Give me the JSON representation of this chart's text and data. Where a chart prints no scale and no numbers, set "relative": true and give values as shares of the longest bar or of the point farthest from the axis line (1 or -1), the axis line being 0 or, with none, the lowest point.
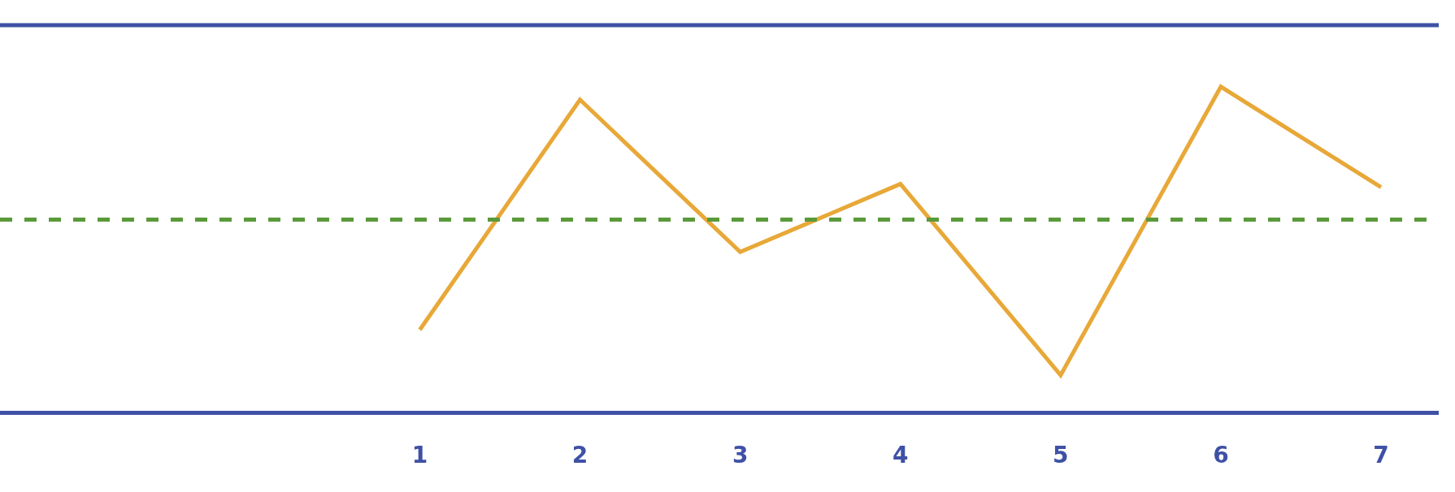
{
  "chart_data": {
    "type": "line",
    "relative": true,
    "categories": [
      "1",
      "2",
      "3",
      "4",
      "5",
      "6",
      "7"
    ],
    "series": [
      {
        "color": "#e8a838",
        "values": [
          0.25,
          0.96,
          0.49,
          0.7,
          0.11,
          1,
          0.69
        ]
      }
    ],
    "ref_lines": [
      {
        "axis": "y",
        "value": 1.19,
        "color": "#3f51a5",
        "line_style": "solid"
      },
      {
        "axis": "y",
        "value": 0.59,
        "color": "#5a9a3a",
        "line_style": "dashed"
      }
    ],
    "marker": "none",
    "line_style": "solid"
  }
}
